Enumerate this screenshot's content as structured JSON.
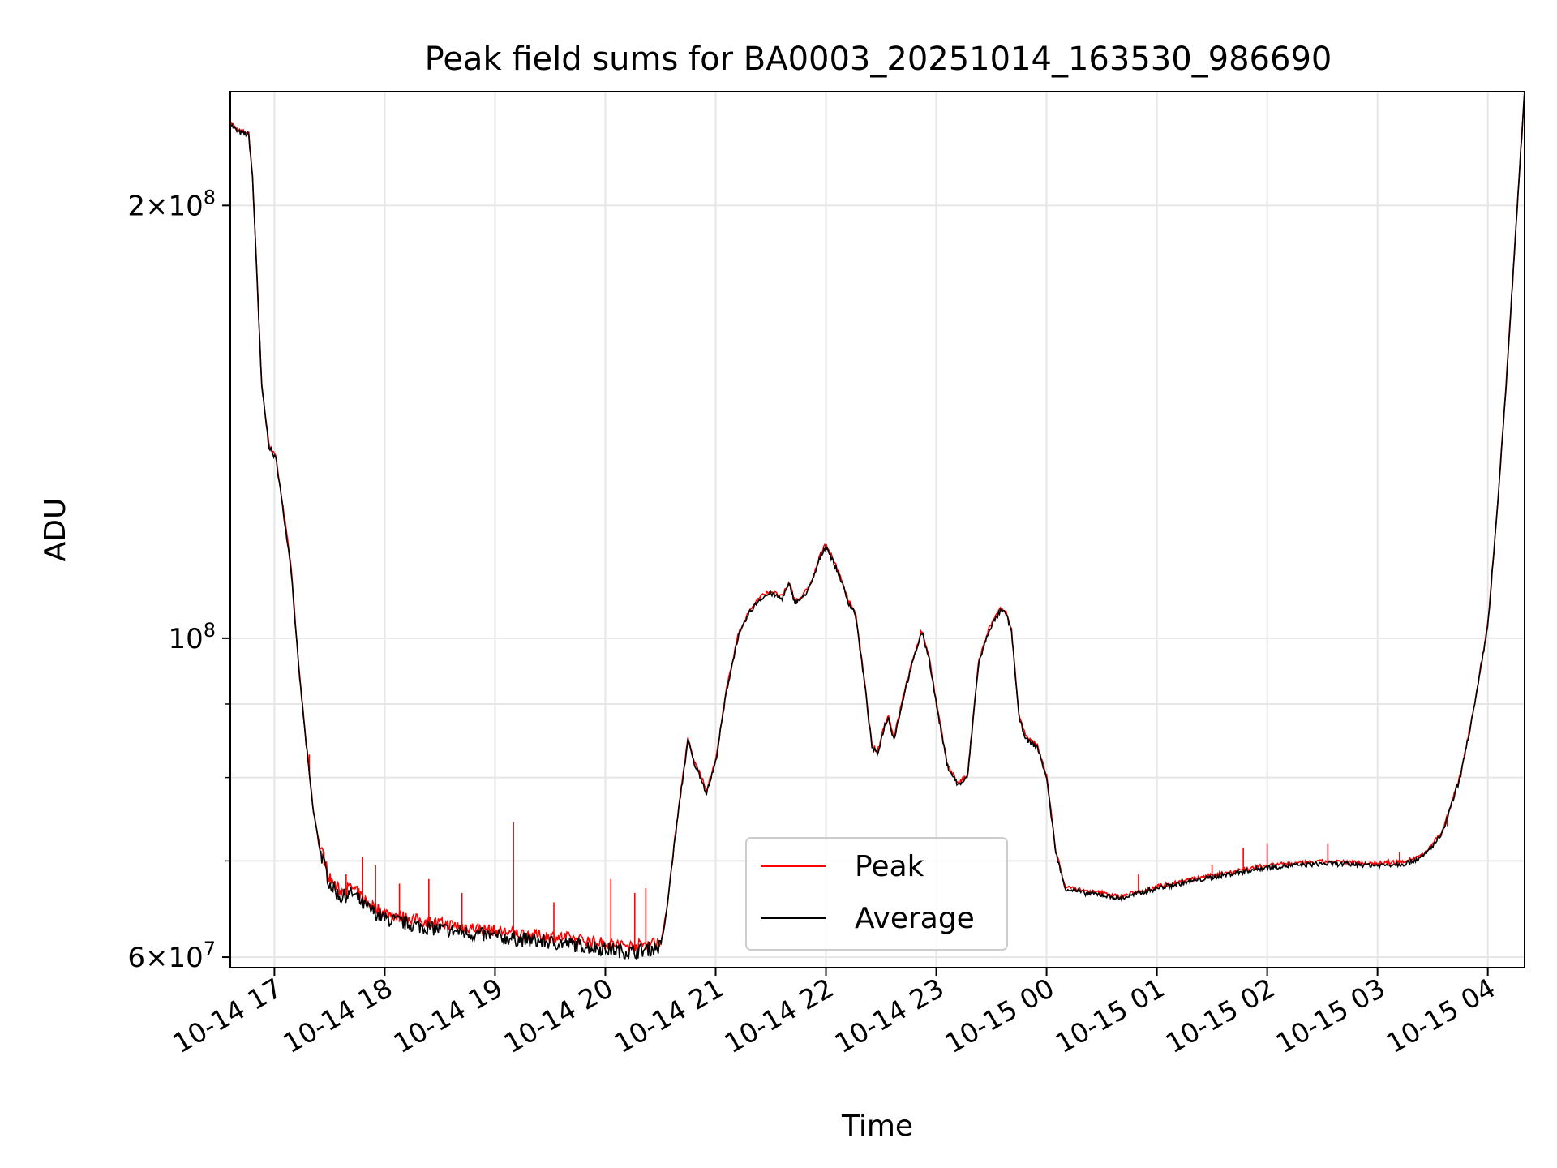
{
  "chart_data": {
    "type": "line",
    "title": "Peak field sums for BA0003_20251014_163530_986690",
    "xlabel": "Time",
    "ylabel": "ADU",
    "yscale": "log",
    "ylim": [
      59000000,
      240000000
    ],
    "xlim": [
      "2025-10-14 16:36",
      "2025-10-15 04:20"
    ],
    "grid": true,
    "legend_position": "lower center",
    "x_ticks": [
      {
        "t": "2025-10-14 17:00",
        "label": "10-14 17"
      },
      {
        "t": "2025-10-14 18:00",
        "label": "10-14 18"
      },
      {
        "t": "2025-10-14 19:00",
        "label": "10-14 19"
      },
      {
        "t": "2025-10-14 20:00",
        "label": "10-14 20"
      },
      {
        "t": "2025-10-14 21:00",
        "label": "10-14 21"
      },
      {
        "t": "2025-10-14 22:00",
        "label": "10-14 22"
      },
      {
        "t": "2025-10-14 23:00",
        "label": "10-14 23"
      },
      {
        "t": "2025-10-15 00:00",
        "label": "10-15 00"
      },
      {
        "t": "2025-10-15 01:00",
        "label": "10-15 01"
      },
      {
        "t": "2025-10-15 02:00",
        "label": "10-15 02"
      },
      {
        "t": "2025-10-15 03:00",
        "label": "10-15 03"
      },
      {
        "t": "2025-10-15 04:00",
        "label": "10-15 04"
      }
    ],
    "y_major_ticks": [
      {
        "value": 60000000,
        "mant": "6",
        "exp": "7"
      },
      {
        "value": 100000000,
        "mant": "",
        "exp": "8"
      },
      {
        "value": 200000000,
        "mant": "2",
        "exp": "8"
      }
    ],
    "y_minor_ticks": [
      70000000,
      80000000,
      90000000
    ],
    "series": [
      {
        "name": "Average",
        "color": "#000000",
        "points": [
          [
            "2025-10-14 16:36",
            228000000
          ],
          [
            "2025-10-14 16:40",
            225000000
          ],
          [
            "2025-10-14 16:46",
            224000000
          ],
          [
            "2025-10-14 16:48",
            210000000
          ],
          [
            "2025-10-14 16:50",
            185000000
          ],
          [
            "2025-10-14 16:53",
            150000000
          ],
          [
            "2025-10-14 16:57",
            136000000
          ],
          [
            "2025-10-14 17:01",
            133000000
          ],
          [
            "2025-10-14 17:05",
            122000000
          ],
          [
            "2025-10-14 17:09",
            112000000
          ],
          [
            "2025-10-14 17:13",
            96000000
          ],
          [
            "2025-10-14 17:17",
            85000000
          ],
          [
            "2025-10-14 17:21",
            76000000
          ],
          [
            "2025-10-14 17:25",
            71000000
          ],
          [
            "2025-10-14 17:30",
            67500000
          ],
          [
            "2025-10-14 17:36",
            66000000
          ],
          [
            "2025-10-14 17:42",
            66500000
          ],
          [
            "2025-10-14 17:50",
            65000000
          ],
          [
            "2025-10-14 18:00",
            63800000
          ],
          [
            "2025-10-14 18:20",
            63000000
          ],
          [
            "2025-10-14 18:40",
            62500000
          ],
          [
            "2025-10-14 19:00",
            62000000
          ],
          [
            "2025-10-14 19:20",
            61600000
          ],
          [
            "2025-10-14 19:40",
            61300000
          ],
          [
            "2025-10-14 20:00",
            60800000
          ],
          [
            "2025-10-14 20:15",
            60500000
          ],
          [
            "2025-10-14 20:30",
            61000000
          ],
          [
            "2025-10-14 20:33",
            64000000
          ],
          [
            "2025-10-14 20:37",
            71000000
          ],
          [
            "2025-10-14 20:41",
            78000000
          ],
          [
            "2025-10-14 20:45",
            85000000
          ],
          [
            "2025-10-14 20:48",
            82000000
          ],
          [
            "2025-10-14 20:52",
            80000000
          ],
          [
            "2025-10-14 20:55",
            78000000
          ],
          [
            "2025-10-14 21:00",
            82000000
          ],
          [
            "2025-10-14 21:06",
            92000000
          ],
          [
            "2025-10-14 21:12",
            100000000
          ],
          [
            "2025-10-14 21:18",
            104000000
          ],
          [
            "2025-10-14 21:24",
            106500000
          ],
          [
            "2025-10-14 21:30",
            107500000
          ],
          [
            "2025-10-14 21:36",
            106500000
          ],
          [
            "2025-10-14 21:40",
            109000000
          ],
          [
            "2025-10-14 21:43",
            106000000
          ],
          [
            "2025-10-14 21:47",
            106500000
          ],
          [
            "2025-10-14 21:52",
            109000000
          ],
          [
            "2025-10-14 21:57",
            114000000
          ],
          [
            "2025-10-14 22:00",
            116000000
          ],
          [
            "2025-10-14 22:04",
            113000000
          ],
          [
            "2025-10-14 22:08",
            110000000
          ],
          [
            "2025-10-14 22:12",
            106000000
          ],
          [
            "2025-10-14 22:16",
            104000000
          ],
          [
            "2025-10-14 22:21",
            93000000
          ],
          [
            "2025-10-14 22:25",
            84000000
          ],
          [
            "2025-10-14 22:28",
            83000000
          ],
          [
            "2025-10-14 22:32",
            87000000
          ],
          [
            "2025-10-14 22:34",
            88000000
          ],
          [
            "2025-10-14 22:37",
            85000000
          ],
          [
            "2025-10-14 22:43",
            92000000
          ],
          [
            "2025-10-14 22:48",
            97000000
          ],
          [
            "2025-10-14 22:52",
            101000000
          ],
          [
            "2025-10-14 22:56",
            97000000
          ],
          [
            "2025-10-14 23:00",
            90000000
          ],
          [
            "2025-10-14 23:06",
            81500000
          ],
          [
            "2025-10-14 23:12",
            79000000
          ],
          [
            "2025-10-14 23:17",
            80000000
          ],
          [
            "2025-10-14 23:23",
            96000000
          ],
          [
            "2025-10-14 23:29",
            101500000
          ],
          [
            "2025-10-14 23:35",
            104500000
          ],
          [
            "2025-10-14 23:38",
            104000000
          ],
          [
            "2025-10-14 23:41",
            101000000
          ],
          [
            "2025-10-14 23:45",
            88000000
          ],
          [
            "2025-10-14 23:49",
            85000000
          ],
          [
            "2025-10-14 23:55",
            84000000
          ],
          [
            "2025-10-15 00:00",
            80000000
          ],
          [
            "2025-10-15 00:05",
            71000000
          ],
          [
            "2025-10-15 00:10",
            67000000
          ],
          [
            "2025-10-15 00:20",
            66500000
          ],
          [
            "2025-10-15 00:30",
            66300000
          ],
          [
            "2025-10-15 00:40",
            65900000
          ],
          [
            "2025-10-15 01:00",
            67000000
          ],
          [
            "2025-10-15 01:30",
            68200000
          ],
          [
            "2025-10-15 02:00",
            69300000
          ],
          [
            "2025-10-15 02:30",
            69700000
          ],
          [
            "2025-10-15 02:50",
            69600000
          ],
          [
            "2025-10-15 03:00",
            69500000
          ],
          [
            "2025-10-15 03:15",
            69700000
          ],
          [
            "2025-10-15 03:25",
            70500000
          ],
          [
            "2025-10-15 03:35",
            73000000
          ],
          [
            "2025-10-15 03:45",
            80000000
          ],
          [
            "2025-10-15 03:53",
            90000000
          ],
          [
            "2025-10-15 04:00",
            102000000
          ],
          [
            "2025-10-15 04:05",
            122000000
          ],
          [
            "2025-10-15 04:10",
            150000000
          ],
          [
            "2025-10-15 04:15",
            190000000
          ],
          [
            "2025-10-15 04:20",
            240000000
          ]
        ]
      },
      {
        "name": "Peak",
        "color": "#ff0000",
        "spikes": [
          [
            "2025-10-14 17:19",
            83000000
          ],
          [
            "2025-10-14 17:27",
            71000000
          ],
          [
            "2025-10-14 17:39",
            68500000
          ],
          [
            "2025-10-14 17:48",
            70500000
          ],
          [
            "2025-10-14 17:55",
            69500000
          ],
          [
            "2025-10-14 18:08",
            67500000
          ],
          [
            "2025-10-14 18:24",
            68000000
          ],
          [
            "2025-10-14 18:42",
            66500000
          ],
          [
            "2025-10-14 19:10",
            74500000
          ],
          [
            "2025-10-14 19:32",
            65500000
          ],
          [
            "2025-10-14 20:03",
            68000000
          ],
          [
            "2025-10-14 20:16",
            66500000
          ],
          [
            "2025-10-14 20:22",
            67000000
          ],
          [
            "2025-10-15 00:50",
            68500000
          ],
          [
            "2025-10-15 01:30",
            69500000
          ],
          [
            "2025-10-15 01:47",
            71500000
          ],
          [
            "2025-10-15 02:00",
            72000000
          ],
          [
            "2025-10-15 02:33",
            72000000
          ],
          [
            "2025-10-15 03:12",
            71000000
          ],
          [
            "2025-10-15 03:38",
            74000000
          ]
        ]
      }
    ]
  }
}
